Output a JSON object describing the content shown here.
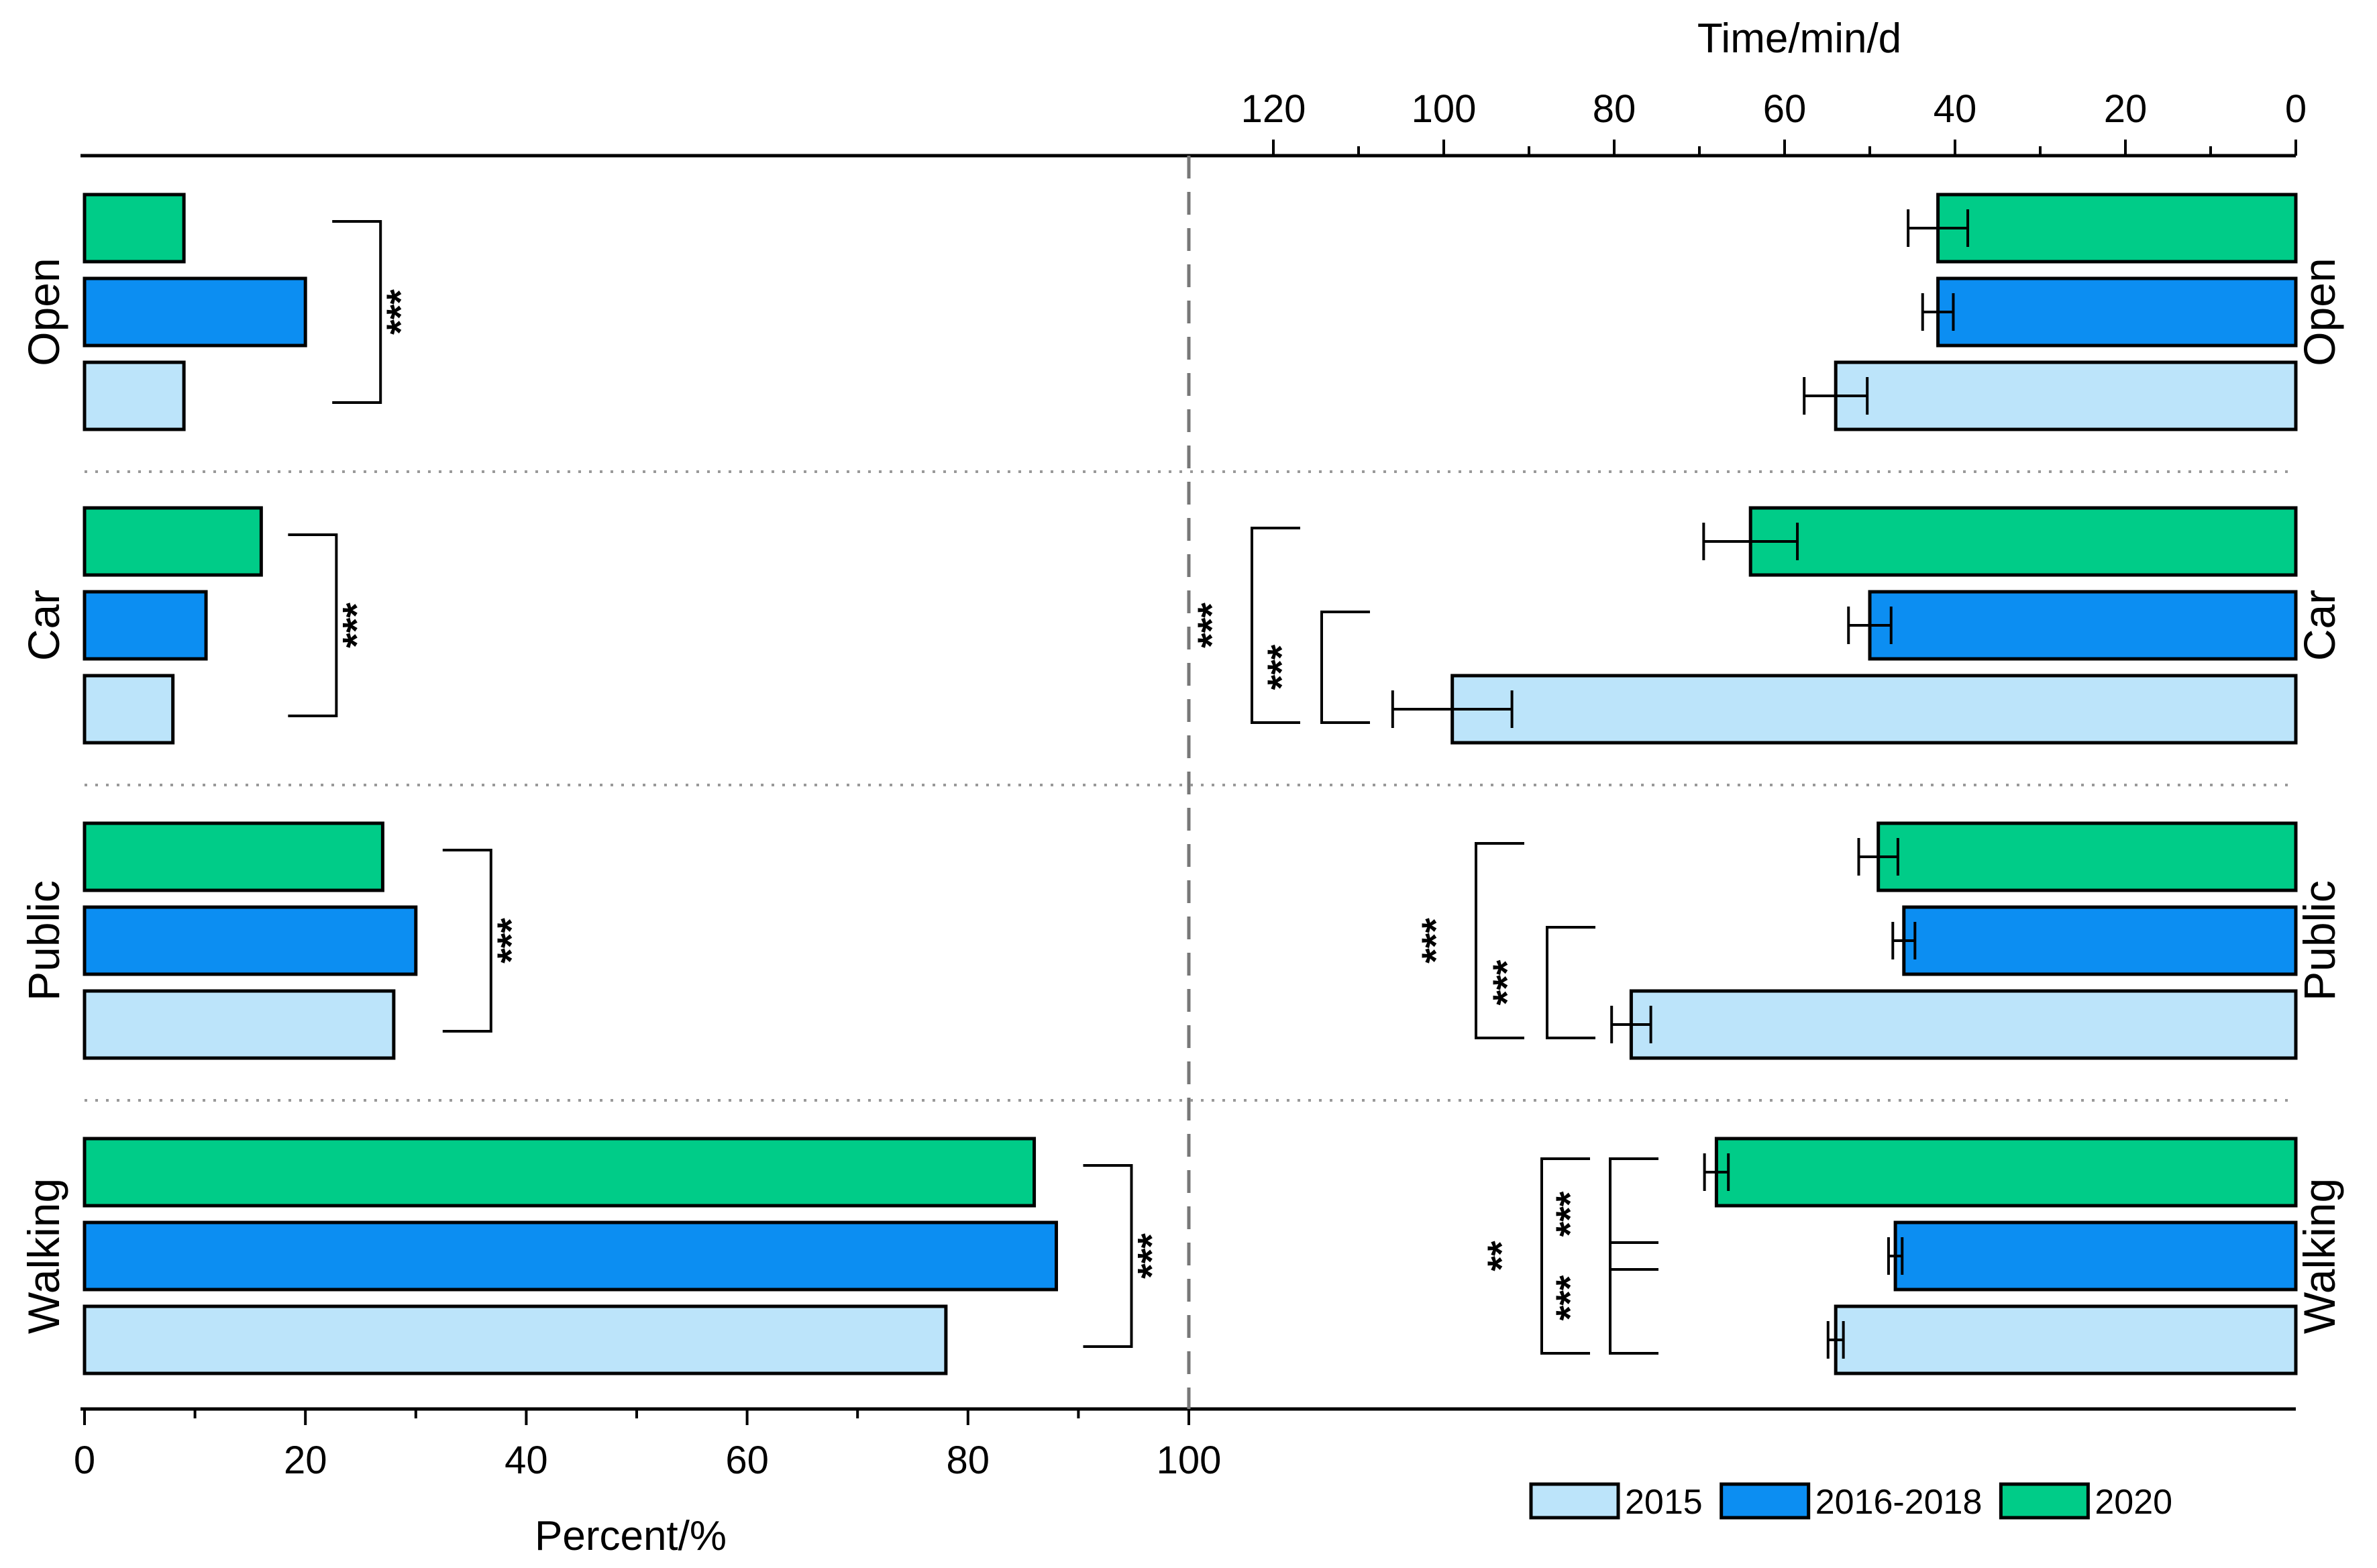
{
  "chart_data": {
    "type": "bar",
    "orientation": "horizontal",
    "categories": [
      "Open",
      "Car",
      "Public",
      "Walking"
    ],
    "series": [
      {
        "name": "2020",
        "color": "#00CC88"
      },
      {
        "name": "2016-2018",
        "color": "#0C8EF2"
      },
      {
        "name": "2015",
        "color": "#BCE4FA"
      }
    ],
    "legend_order": [
      "2015",
      "2016-2018",
      "2020"
    ],
    "legend_position": "bottom-right",
    "left_panel": {
      "xlabel": "Percent/%",
      "xlim": [
        0,
        100
      ],
      "ticks": [
        0,
        20,
        40,
        60,
        80,
        100
      ],
      "values": {
        "Open": {
          "2020": 9,
          "2016-2018": 20,
          "2015": 9
        },
        "Car": {
          "2020": 16,
          "2016-2018": 11,
          "2015": 8
        },
        "Public": {
          "2020": 27,
          "2016-2018": 30,
          "2015": 28
        },
        "Walking": {
          "2020": 86,
          "2016-2018": 88,
          "2015": 78
        }
      },
      "significance": [
        {
          "category": "Open",
          "label": "***"
        },
        {
          "category": "Car",
          "label": "***"
        },
        {
          "category": "Public",
          "label": "***"
        },
        {
          "category": "Walking",
          "label": "***"
        }
      ]
    },
    "right_panel": {
      "xlabel": "Time/min/d",
      "xlim": [
        0,
        130
      ],
      "reversed": true,
      "ticks": [
        120,
        100,
        80,
        60,
        40,
        20,
        0
      ],
      "values": {
        "Open": {
          "2020": 42,
          "2016-2018": 42,
          "2015": 54
        },
        "Car": {
          "2020": 64,
          "2016-2018": 50,
          "2015": 99
        },
        "Public": {
          "2020": 49,
          "2016-2018": 46,
          "2015": 78
        },
        "Walking": {
          "2020": 68,
          "2016-2018": 47,
          "2015": 54
        }
      },
      "errors": {
        "Open": {
          "2020": 3.5,
          "2016-2018": 1.8,
          "2015": 3.7
        },
        "Car": {
          "2020": 5.5,
          "2016-2018": 2.5,
          "2015": 7
        },
        "Public": {
          "2020": 2.3,
          "2016-2018": 1.3,
          "2015": 2.3
        },
        "Walking": {
          "2020": 1.4,
          "2016-2018": 0.8,
          "2015": 0.9
        }
      },
      "significance": [
        {
          "category": "Car",
          "compare": [
            "2020",
            "2015"
          ],
          "label": "***"
        },
        {
          "category": "Car",
          "compare": [
            "2016-2018",
            "2015"
          ],
          "label": "***"
        },
        {
          "category": "Public",
          "compare": [
            "2020",
            "2015"
          ],
          "label": "***"
        },
        {
          "category": "Public",
          "compare": [
            "2016-2018",
            "2015"
          ],
          "label": "***"
        },
        {
          "category": "Walking",
          "compare": [
            "2020",
            "2015"
          ],
          "label": "**"
        },
        {
          "category": "Walking",
          "compare": [
            "2020",
            "2016-2018"
          ],
          "label": "***"
        },
        {
          "category": "Walking",
          "compare": [
            "2016-2018",
            "2015"
          ],
          "label": "***"
        }
      ]
    }
  }
}
